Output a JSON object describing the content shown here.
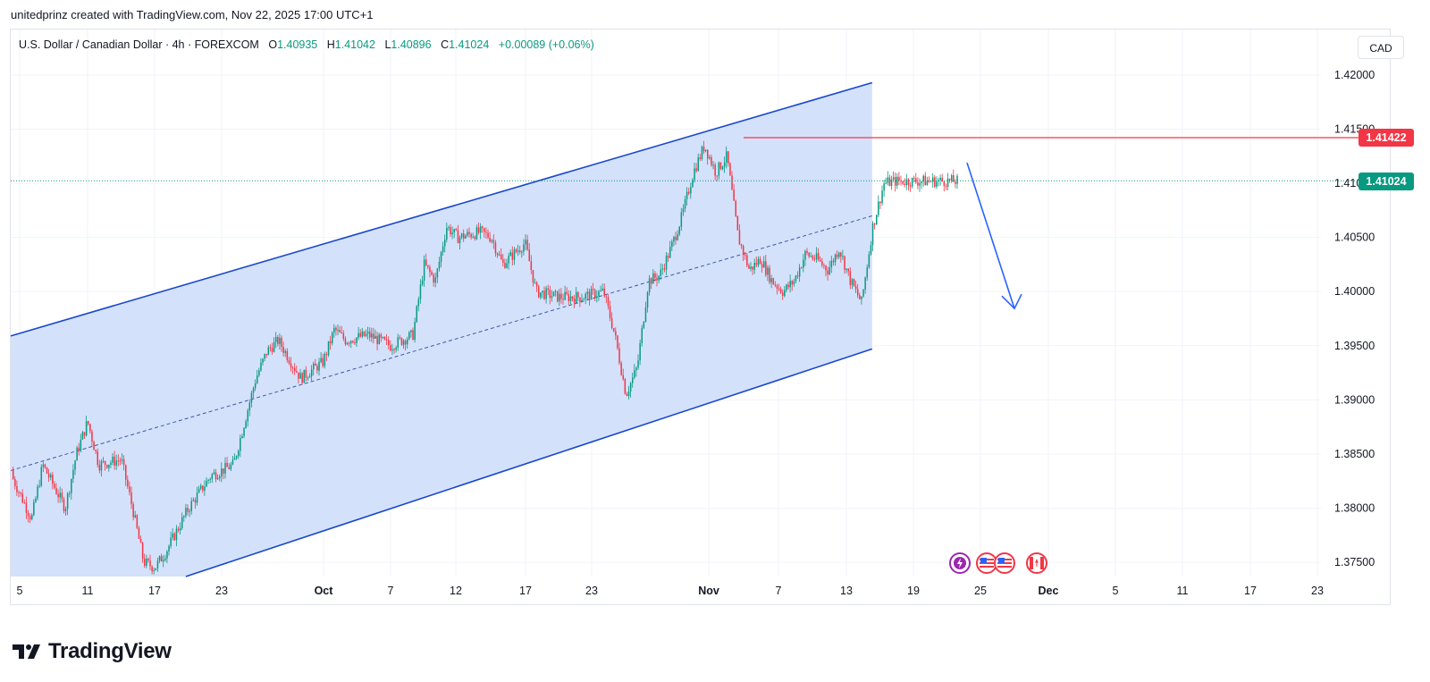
{
  "header": {
    "author_line": "unitedprinz created with TradingView.com, Nov 22, 2025 17:00 UTC+1"
  },
  "legend": {
    "symbol": "U.S. Dollar / Canadian Dollar · 4h · FOREXCOM",
    "open_label": "O",
    "open": "1.40935",
    "high_label": "H",
    "high": "1.41042",
    "low_label": "L",
    "low": "1.40896",
    "close_label": "C",
    "close": "1.41024",
    "change": "+0.00089 (+0.06%)"
  },
  "currency_button": {
    "label": "CAD"
  },
  "price_tags": {
    "resistance": {
      "text": "1.41422",
      "color": "#f23645"
    },
    "last_price": {
      "text": "1.41024",
      "color": "#089981"
    }
  },
  "footer": {
    "brand": "TradingView"
  },
  "event_icons": [
    {
      "name": "lightning-event-icon"
    },
    {
      "name": "us-flag-icon"
    },
    {
      "name": "us-flag-icon-2"
    },
    {
      "name": "canada-flag-icon"
    }
  ],
  "chart_data": {
    "type": "candlestick",
    "symbol": "USDCAD",
    "timeframe": "4h",
    "title": "",
    "y_axis": {
      "ticks": [
        "1.42000",
        "1.41500",
        "1.41000",
        "1.40500",
        "1.40000",
        "1.39500",
        "1.39000",
        "1.38500",
        "1.38000",
        "1.37500"
      ],
      "range": [
        1.3734,
        1.4215
      ]
    },
    "x_axis": {
      "ticks": [
        "5",
        "11",
        "17",
        "23",
        "Oct",
        "7",
        "12",
        "17",
        "23",
        "Nov",
        "7",
        "13",
        "19",
        "25",
        "Dec",
        "5",
        "11",
        "17",
        "23"
      ],
      "bold_ticks": [
        "Oct",
        "Nov",
        "Dec"
      ]
    },
    "colors": {
      "up": "#089981",
      "down": "#f23645",
      "channel_fill": "#d2dffb",
      "channel_line": "#1848cc",
      "resistance": "#f23645",
      "arrow": "#2962ff"
    },
    "channel": {
      "upper": {
        "start": {
          "date": "Sep 4",
          "price": 1.3959
        },
        "end": {
          "date": "Nov 20",
          "price": 1.4193
        }
      },
      "lower": {
        "start": {
          "date": "Sep 12",
          "price": 1.3734
        },
        "end": {
          "date": "Nov 20",
          "price": 1.3947
        }
      },
      "midline": {
        "start": {
          "date": "Sep 4",
          "price": 1.3838
        },
        "end": {
          "date": "Nov 20",
          "price": 1.407
        }
      }
    },
    "resistance_level": 1.41422,
    "last_price": 1.41024,
    "projection_arrow": {
      "direction": "down",
      "start": {
        "date": "Nov 21",
        "price": 1.4114
      },
      "end": {
        "date": "Nov 27",
        "price": 1.3986
      }
    },
    "price_path": [
      [
        "Sep 4",
        1.3835
      ],
      [
        "Sep 6",
        1.379
      ],
      [
        "Sep 7",
        1.384
      ],
      [
        "Sep 9",
        1.38
      ],
      [
        "Sep 10",
        1.385
      ],
      [
        "Sep 11",
        1.388
      ],
      [
        "Sep 12",
        1.384
      ],
      [
        "Sep 14",
        1.3845
      ],
      [
        "Sep 15",
        1.38
      ],
      [
        "Sep 16",
        1.375
      ],
      [
        "Sep 17",
        1.3745
      ],
      [
        "Sep 18",
        1.376
      ],
      [
        "Sep 20",
        1.38
      ],
      [
        "Sep 22",
        1.383
      ],
      [
        "Sep 24",
        1.384
      ],
      [
        "Sep 26",
        1.392
      ],
      [
        "Sep 27",
        1.3945
      ],
      [
        "Sep 28",
        1.3955
      ],
      [
        "Sep 30",
        1.392
      ],
      [
        "Oct 2",
        1.3935
      ],
      [
        "Oct 3",
        1.3965
      ],
      [
        "Oct 4",
        1.3955
      ],
      [
        "Oct 6",
        1.396
      ],
      [
        "Oct 8",
        1.395
      ],
      [
        "Oct 10",
        1.396
      ],
      [
        "Oct 11",
        1.4025
      ],
      [
        "Oct 12",
        1.401
      ],
      [
        "Oct 13",
        1.406
      ],
      [
        "Oct 14",
        1.405
      ],
      [
        "Oct 16",
        1.4055
      ],
      [
        "Oct 17",
        1.405
      ],
      [
        "Oct 18",
        1.4025
      ],
      [
        "Oct 20",
        1.4045
      ],
      [
        "Oct 21",
        1.4
      ],
      [
        "Oct 23",
        1.3995
      ],
      [
        "Oct 25",
        1.3995
      ],
      [
        "Oct 27",
        1.4
      ],
      [
        "Oct 28",
        1.396
      ],
      [
        "Oct 29",
        1.3905
      ],
      [
        "Oct 30",
        1.393
      ],
      [
        "Oct 31",
        1.401
      ],
      [
        "Nov 1",
        1.4015
      ],
      [
        "Nov 2",
        1.404
      ],
      [
        "Nov 3",
        1.407
      ],
      [
        "Nov 4",
        1.411
      ],
      [
        "Nov 5",
        1.4135
      ],
      [
        "Nov 6",
        1.411
      ],
      [
        "Nov 7",
        1.4125
      ],
      [
        "Nov 8",
        1.405
      ],
      [
        "Nov 9",
        1.402
      ],
      [
        "Nov 10",
        1.403
      ],
      [
        "Nov 11",
        1.401
      ],
      [
        "Nov 12",
        1.4
      ],
      [
        "Nov 13",
        1.401
      ],
      [
        "Nov 14",
        1.4035
      ],
      [
        "Nov 15",
        1.403
      ],
      [
        "Nov 16",
        1.402
      ],
      [
        "Nov 17",
        1.404
      ],
      [
        "Nov 18",
        1.401
      ],
      [
        "Nov 19",
        1.399
      ],
      [
        "Nov 20",
        1.406
      ],
      [
        "Nov 21",
        1.41
      ],
      [
        "Nov 22",
        1.4102
      ]
    ]
  }
}
